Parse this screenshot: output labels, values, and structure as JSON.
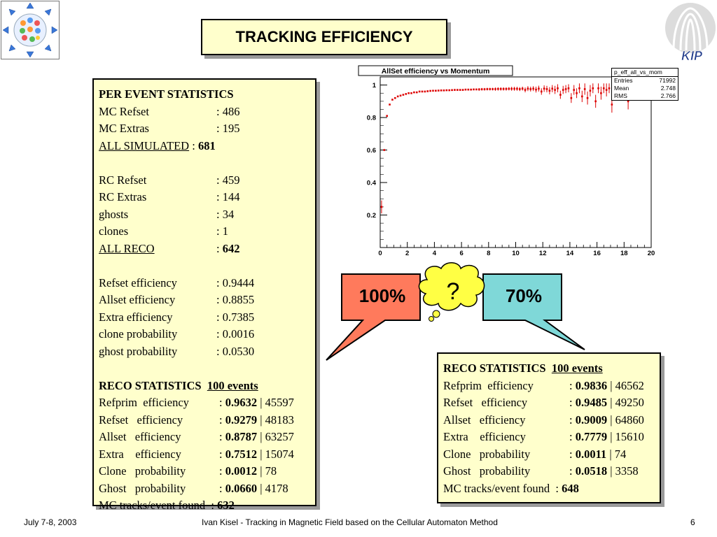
{
  "title": "TRACKING EFFICIENCY",
  "logo_right": "KIP",
  "left_box": {
    "per_event_title": "PER EVENT STATISTICS",
    "per_event": [
      {
        "label": "MC Refset",
        "value": ": 486"
      },
      {
        "label": "MC Extras",
        "value": ": 195"
      },
      {
        "label": "ALL SIMULATED",
        "value": " : ",
        "bold": "681",
        "underline": true
      },
      {
        "label": "",
        "value": ""
      },
      {
        "label": "RC Refset",
        "value": ": 459"
      },
      {
        "label": "RC Extras",
        "value": ": 144"
      },
      {
        "label": "ghosts",
        "value": ": 34"
      },
      {
        "label": "clones",
        "value": ": 1"
      },
      {
        "label": "ALL RECO",
        "value": ": ",
        "bold": "642",
        "underline": true
      },
      {
        "label": "",
        "value": ""
      },
      {
        "label": "Refset efficiency",
        "value": ": 0.9444"
      },
      {
        "label": "Allset efficiency",
        "value": ": 0.8855"
      },
      {
        "label": "Extra  efficiency",
        "value": ": 0.7385"
      },
      {
        "label": "clone  probability",
        "value": ": 0.0016"
      },
      {
        "label": "ghost  probability",
        "value": ": 0.0530"
      },
      {
        "label": "",
        "value": ""
      }
    ],
    "reco_title": "RECO STATISTICS",
    "reco_events": "100 events",
    "reco": [
      {
        "label": "Refprim  efficiency",
        "bold": "0.9632",
        "count": "45597"
      },
      {
        "label": "Refset   efficiency",
        "bold": "0.9279",
        "count": "48183"
      },
      {
        "label": "Allset   efficiency",
        "bold": "0.8787",
        "count": "63257"
      },
      {
        "label": "Extra    efficiency",
        "bold": "0.7512",
        "count": "15074"
      },
      {
        "label": "Clone   probability",
        "bold": "0.0012",
        "count": "78"
      },
      {
        "label": "Ghost   probability",
        "bold": "0.0660",
        "count": "4178"
      }
    ],
    "mc_tracks_label": "MC tracks/event found  : ",
    "mc_tracks_value": "632"
  },
  "right_box": {
    "reco_title": "RECO STATISTICS",
    "reco_events": "100 events",
    "reco": [
      {
        "label": "Refprim  efficiency",
        "bold": "0.9836",
        "count": "46562"
      },
      {
        "label": "Refset   efficiency",
        "bold": "0.9485",
        "count": "49250"
      },
      {
        "label": "Allset   efficiency",
        "bold": "0.9009",
        "count": "64860"
      },
      {
        "label": "Extra    efficiency",
        "bold": "0.7779",
        "count": "15610"
      },
      {
        "label": "Clone   probability",
        "bold": "0.0011",
        "count": "74"
      },
      {
        "label": "Ghost   probability",
        "bold": "0.0518",
        "count": "3358"
      }
    ],
    "mc_tracks_label": "MC tracks/event found  : ",
    "mc_tracks_value": "648"
  },
  "callouts": {
    "left": "100%",
    "right": "70%",
    "thought": "?",
    "left_color": "#ff7a5c",
    "right_color": "#7fd8d8",
    "thought_color": "#ffff44"
  },
  "stats_legend": {
    "name": "p_eff_all_vs_mom",
    "rows": [
      {
        "k": "Entries",
        "v": "71992"
      },
      {
        "k": "Mean",
        "v": "2.748"
      },
      {
        "k": "RMS",
        "v": "2.766"
      }
    ]
  },
  "chart_data": {
    "type": "scatter",
    "title": "AllSet efficiency vs Momentum",
    "xlabel": "",
    "ylabel": "",
    "xlim": [
      0,
      20
    ],
    "ylim": [
      0,
      1.05
    ],
    "xticks": [
      "0",
      "2",
      "4",
      "6",
      "8",
      "10",
      "12",
      "14",
      "16",
      "18",
      "20"
    ],
    "yticks": [
      "0.2",
      "0.4",
      "0.6",
      "0.8",
      "1"
    ],
    "grid": false,
    "marker_color": "#dd0000",
    "points": [
      {
        "x": 0.1,
        "y": 0.25,
        "e": 0.04
      },
      {
        "x": 0.3,
        "y": 0.6,
        "e": 0.0
      },
      {
        "x": 0.5,
        "y": 0.81,
        "e": 0.0
      },
      {
        "x": 0.7,
        "y": 0.88,
        "e": 0.0
      },
      {
        "x": 0.9,
        "y": 0.91,
        "e": 0.0
      },
      {
        "x": 1.1,
        "y": 0.92,
        "e": 0.0
      },
      {
        "x": 1.3,
        "y": 0.93,
        "e": 0.0
      },
      {
        "x": 1.5,
        "y": 0.935,
        "e": 0.0
      },
      {
        "x": 1.7,
        "y": 0.94,
        "e": 0.0
      },
      {
        "x": 1.9,
        "y": 0.945,
        "e": 0.0
      },
      {
        "x": 2.1,
        "y": 0.95,
        "e": 0.0
      },
      {
        "x": 2.3,
        "y": 0.95,
        "e": 0.0
      },
      {
        "x": 2.5,
        "y": 0.955,
        "e": 0.0
      },
      {
        "x": 2.7,
        "y": 0.955,
        "e": 0.0
      },
      {
        "x": 2.9,
        "y": 0.96,
        "e": 0.0
      },
      {
        "x": 3.1,
        "y": 0.96,
        "e": 0.0
      },
      {
        "x": 3.3,
        "y": 0.96,
        "e": 0.0
      },
      {
        "x": 3.5,
        "y": 0.962,
        "e": 0.0
      },
      {
        "x": 3.7,
        "y": 0.964,
        "e": 0.0
      },
      {
        "x": 3.9,
        "y": 0.965,
        "e": 0.0
      },
      {
        "x": 4.1,
        "y": 0.965,
        "e": 0.0
      },
      {
        "x": 4.3,
        "y": 0.966,
        "e": 0.0
      },
      {
        "x": 4.5,
        "y": 0.967,
        "e": 0.0
      },
      {
        "x": 4.7,
        "y": 0.967,
        "e": 0.0
      },
      {
        "x": 4.9,
        "y": 0.968,
        "e": 0.0
      },
      {
        "x": 5.1,
        "y": 0.968,
        "e": 0.0
      },
      {
        "x": 5.3,
        "y": 0.969,
        "e": 0.0
      },
      {
        "x": 5.5,
        "y": 0.97,
        "e": 0.005
      },
      {
        "x": 5.7,
        "y": 0.97,
        "e": 0.005
      },
      {
        "x": 5.9,
        "y": 0.97,
        "e": 0.005
      },
      {
        "x": 6.1,
        "y": 0.97,
        "e": 0.005
      },
      {
        "x": 6.3,
        "y": 0.972,
        "e": 0.005
      },
      {
        "x": 6.5,
        "y": 0.972,
        "e": 0.005
      },
      {
        "x": 6.7,
        "y": 0.972,
        "e": 0.005
      },
      {
        "x": 6.9,
        "y": 0.973,
        "e": 0.005
      },
      {
        "x": 7.1,
        "y": 0.973,
        "e": 0.005
      },
      {
        "x": 7.3,
        "y": 0.973,
        "e": 0.008
      },
      {
        "x": 7.5,
        "y": 0.974,
        "e": 0.008
      },
      {
        "x": 7.7,
        "y": 0.974,
        "e": 0.008
      },
      {
        "x": 7.9,
        "y": 0.975,
        "e": 0.008
      },
      {
        "x": 8.1,
        "y": 0.975,
        "e": 0.008
      },
      {
        "x": 8.3,
        "y": 0.975,
        "e": 0.008
      },
      {
        "x": 8.5,
        "y": 0.975,
        "e": 0.01
      },
      {
        "x": 8.7,
        "y": 0.976,
        "e": 0.01
      },
      {
        "x": 8.9,
        "y": 0.976,
        "e": 0.01
      },
      {
        "x": 9.1,
        "y": 0.976,
        "e": 0.01
      },
      {
        "x": 9.3,
        "y": 0.976,
        "e": 0.01
      },
      {
        "x": 9.5,
        "y": 0.977,
        "e": 0.01
      },
      {
        "x": 9.7,
        "y": 0.977,
        "e": 0.012
      },
      {
        "x": 9.9,
        "y": 0.977,
        "e": 0.012
      },
      {
        "x": 10.1,
        "y": 0.977,
        "e": 0.012
      },
      {
        "x": 10.3,
        "y": 0.975,
        "e": 0.012
      },
      {
        "x": 10.5,
        "y": 0.978,
        "e": 0.012
      },
      {
        "x": 10.7,
        "y": 0.97,
        "e": 0.015
      },
      {
        "x": 10.9,
        "y": 0.978,
        "e": 0.015
      },
      {
        "x": 11.1,
        "y": 0.975,
        "e": 0.015
      },
      {
        "x": 11.3,
        "y": 0.978,
        "e": 0.015
      },
      {
        "x": 11.5,
        "y": 0.972,
        "e": 0.018
      },
      {
        "x": 11.7,
        "y": 0.978,
        "e": 0.018
      },
      {
        "x": 11.9,
        "y": 0.96,
        "e": 0.02
      },
      {
        "x": 12.1,
        "y": 0.978,
        "e": 0.02
      },
      {
        "x": 12.3,
        "y": 0.975,
        "e": 0.02
      },
      {
        "x": 12.5,
        "y": 0.965,
        "e": 0.022
      },
      {
        "x": 12.7,
        "y": 0.978,
        "e": 0.022
      },
      {
        "x": 12.9,
        "y": 0.97,
        "e": 0.025
      },
      {
        "x": 13.1,
        "y": 0.98,
        "e": 0.025
      },
      {
        "x": 13.3,
        "y": 0.94,
        "e": 0.025
      },
      {
        "x": 13.5,
        "y": 0.97,
        "e": 0.025
      },
      {
        "x": 13.7,
        "y": 0.975,
        "e": 0.025
      },
      {
        "x": 13.9,
        "y": 0.98,
        "e": 0.025
      },
      {
        "x": 14.1,
        "y": 0.92,
        "e": 0.03
      },
      {
        "x": 14.3,
        "y": 0.97,
        "e": 0.03
      },
      {
        "x": 14.5,
        "y": 0.95,
        "e": 0.03
      },
      {
        "x": 14.7,
        "y": 0.98,
        "e": 0.03
      },
      {
        "x": 14.9,
        "y": 0.93,
        "e": 0.035
      },
      {
        "x": 15.1,
        "y": 0.975,
        "e": 0.035
      },
      {
        "x": 15.3,
        "y": 0.92,
        "e": 0.04
      },
      {
        "x": 15.5,
        "y": 0.965,
        "e": 0.035
      },
      {
        "x": 15.7,
        "y": 0.98,
        "e": 0.03
      },
      {
        "x": 15.9,
        "y": 0.9,
        "e": 0.04
      },
      {
        "x": 16.1,
        "y": 0.98,
        "e": 0.03
      },
      {
        "x": 16.3,
        "y": 0.95,
        "e": 0.04
      },
      {
        "x": 16.5,
        "y": 0.98,
        "e": 0.03
      },
      {
        "x": 16.7,
        "y": 0.97,
        "e": 0.04
      },
      {
        "x": 16.9,
        "y": 0.98,
        "e": 0.03
      },
      {
        "x": 17.1,
        "y": 0.88,
        "e": 0.05
      },
      {
        "x": 17.3,
        "y": 0.98,
        "e": 0.03
      },
      {
        "x": 17.5,
        "y": 0.98,
        "e": 0.03
      },
      {
        "x": 17.7,
        "y": 0.97,
        "e": 0.04
      },
      {
        "x": 17.9,
        "y": 0.98,
        "e": 0.03
      },
      {
        "x": 18.1,
        "y": 0.98,
        "e": 0.03
      },
      {
        "x": 18.3,
        "y": 0.9,
        "e": 0.05
      },
      {
        "x": 18.5,
        "y": 0.98,
        "e": 0.03
      },
      {
        "x": 18.7,
        "y": 0.97,
        "e": 0.04
      }
    ]
  },
  "footer": {
    "date": "July 7-8, 2003",
    "center": "Ivan Kisel - Tracking in Magnetic Field based on the Cellular Automaton Method",
    "page": "6"
  }
}
